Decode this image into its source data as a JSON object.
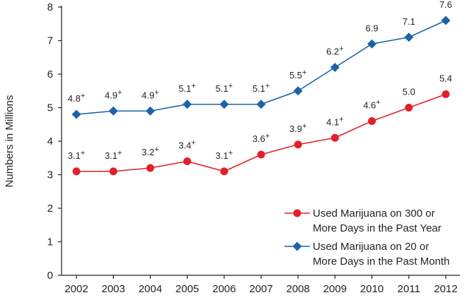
{
  "chart_data": {
    "type": "line",
    "title": "",
    "xlabel": "",
    "ylabel": "Numbers in Millions",
    "x": [
      "2002",
      "2003",
      "2004",
      "2005",
      "2006",
      "2007",
      "2008",
      "2009",
      "2010",
      "2011",
      "2012"
    ],
    "ylim": [
      0,
      8
    ],
    "yticks": [
      "0",
      "1",
      "2",
      "3",
      "4",
      "5",
      "6",
      "7",
      "8"
    ],
    "grid": false,
    "legend_position": "bottom-right",
    "series": [
      {
        "name": "Used Marijuana on 300 or More Days in the Past Year",
        "legend_lines": [
          "Used Marijuana on 300 or",
          "More Days in the Past Year"
        ],
        "marker": "circle",
        "color": "#e3202a",
        "values": [
          3.1,
          3.1,
          3.2,
          3.4,
          3.1,
          3.6,
          3.9,
          4.1,
          4.6,
          5.0,
          5.4
        ],
        "labels": [
          "3.1",
          "3.1",
          "3.2",
          "3.4",
          "3.1",
          "3.6",
          "3.9",
          "4.1",
          "4.6",
          "5.0",
          "5.4"
        ],
        "label_superscripts": [
          "+",
          "+",
          "+",
          "+",
          "+",
          "+",
          "+",
          "+",
          "+",
          "",
          ""
        ]
      },
      {
        "name": "Used Marijuana on 20 or More Days in the Past Month",
        "legend_lines": [
          "Used Marijuana on 20 or",
          "More Days in the Past Month"
        ],
        "marker": "diamond",
        "color": "#1c63a8",
        "values": [
          4.8,
          4.9,
          4.9,
          5.1,
          5.1,
          5.1,
          5.5,
          6.2,
          6.9,
          7.1,
          7.6
        ],
        "labels": [
          "4.8",
          "4.9",
          "4.9",
          "5.1",
          "5.1",
          "5.1",
          "5.5",
          "6.2",
          "6.9",
          "7.1",
          "7.6"
        ],
        "label_superscripts": [
          "+",
          "+",
          "+",
          "+",
          "+",
          "+",
          "+",
          "+",
          "",
          "",
          ""
        ]
      }
    ]
  }
}
